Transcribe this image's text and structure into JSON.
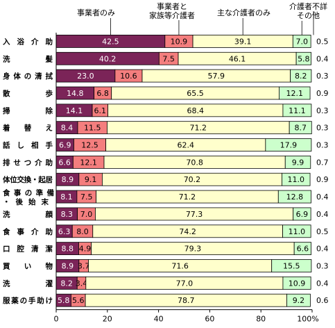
{
  "chart_data": {
    "type": "bar",
    "orientation": "horizontal",
    "stacked": true,
    "title": "",
    "xlabel": "",
    "ylabel": "",
    "xlim": [
      0,
      100
    ],
    "x_ticks": [
      "0",
      "20",
      "40",
      "60",
      "80",
      "100%"
    ],
    "grid": false,
    "legend_position": "top",
    "categories": [
      "入浴介助",
      "洗髪",
      "身体の清拭",
      "散歩",
      "掃除",
      "着替え",
      "話し相手",
      "排せつ介助",
      "体位交換・起居",
      "食事の準備・後始末",
      "洗顔",
      "食事介助",
      "口腔清潔",
      "買い物",
      "洗濯",
      "服薬の手助け"
    ],
    "series": [
      {
        "name": "事業者のみ",
        "color": "#7b2458",
        "values": [
          42.5,
          40.2,
          23.0,
          14.8,
          14.1,
          8.4,
          6.9,
          6.6,
          8.9,
          8.1,
          8.3,
          6.3,
          8.8,
          8.9,
          8.2,
          5.8
        ]
      },
      {
        "name": "事業者と家族等介護者",
        "color": "#f47e7e",
        "values": [
          10.9,
          7.5,
          10.6,
          6.8,
          6.1,
          11.5,
          12.5,
          12.1,
          9.1,
          7.5,
          7.0,
          8.0,
          4.9,
          3.7,
          3.4,
          5.6
        ]
      },
      {
        "name": "主な介護者のみ",
        "color": "#ffffcc",
        "values": [
          39.1,
          46.1,
          57.9,
          65.5,
          68.4,
          71.2,
          62.4,
          70.8,
          70.2,
          71.2,
          77.3,
          74.2,
          79.3,
          71.6,
          77.0,
          78.7
        ]
      },
      {
        "name": "その他",
        "color": "#ccffcc",
        "values": [
          7.0,
          5.8,
          8.2,
          12.1,
          11.1,
          8.7,
          17.9,
          9.9,
          11.0,
          12.8,
          6.9,
          11.0,
          6.6,
          15.5,
          10.9,
          9.2
        ]
      }
    ],
    "unknown_series": {
      "name": "介護者不詳",
      "values": [
        0.5,
        0.4,
        0.3,
        0.9,
        0.3,
        0.3,
        0.3,
        0.7,
        0.9,
        0.4,
        0.4,
        0.5,
        0.4,
        0.3,
        0.4,
        0.6
      ]
    },
    "legend_labels": {
      "s0": "事業者のみ",
      "s1_line1": "事業者と",
      "s1_line2": "家族等介護者",
      "s2": "主な介護者のみ",
      "s3": "その他",
      "unknown": "介護者不詳"
    },
    "category_label_lines": {
      "9": [
        "食 事 の 準 備",
        "・ 後 始 末"
      ]
    }
  }
}
